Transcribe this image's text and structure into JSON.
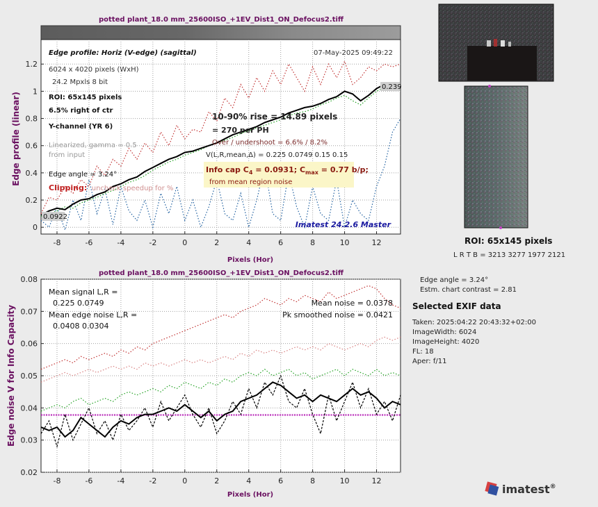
{
  "file_title": "potted plant_18.0 mm_25600ISO_+1EV_Dist1_ON_Defocus2.tiff",
  "colors": {
    "profile": "#000000",
    "red": "#c03030",
    "green": "#20a020",
    "blue": "#2060a0",
    "mean_noise_line": "#c040c0",
    "title": "#6a1060",
    "axis_label": "#6a1060",
    "watermark": "#1a1aa0",
    "info_box_bg": "#fbf6c8"
  },
  "chart_data": [
    {
      "type": "line",
      "name": "edge-profile",
      "xlabel": "Pixels (Hor)",
      "ylabel": "Edge profile (linear)",
      "xlim": [
        -9,
        13.5
      ],
      "ylim": [
        -0.05,
        1.38
      ],
      "xticks": [
        -8,
        -6,
        -4,
        -2,
        0,
        2,
        4,
        6,
        8,
        10,
        12
      ],
      "yticks": [
        0,
        0.2,
        0.4,
        0.6,
        0.8,
        1,
        1.2
      ],
      "grid": true,
      "series": [
        {
          "color": "black",
          "style": "solid",
          "x": [
            -9,
            -8.5,
            -8,
            -7.5,
            -7,
            -6.5,
            -6,
            -5.5,
            -5,
            -4.5,
            -4,
            -3.5,
            -3,
            -2.5,
            -2,
            -1.5,
            -1,
            -0.5,
            0,
            0.5,
            1,
            1.5,
            2,
            2.5,
            3,
            3.5,
            4,
            4.5,
            5,
            5.5,
            6,
            6.5,
            7,
            7.5,
            8,
            8.5,
            9,
            9.5,
            10,
            10.5,
            11,
            11.5,
            12,
            12.5,
            13,
            13.5
          ],
          "y": [
            0.09,
            0.12,
            0.14,
            0.13,
            0.17,
            0.2,
            0.21,
            0.24,
            0.26,
            0.3,
            0.32,
            0.35,
            0.37,
            0.41,
            0.44,
            0.47,
            0.5,
            0.52,
            0.55,
            0.56,
            0.58,
            0.6,
            0.62,
            0.65,
            0.68,
            0.7,
            0.72,
            0.74,
            0.77,
            0.79,
            0.81,
            0.84,
            0.86,
            0.88,
            0.89,
            0.91,
            0.94,
            0.96,
            1.0,
            0.98,
            0.93,
            0.97,
            1.02,
            1.05,
            1.04,
            1.03
          ]
        },
        {
          "color": "red",
          "style": "dotted",
          "x": [
            -9,
            -8.5,
            -8,
            -7.5,
            -7,
            -6.5,
            -6,
            -5.5,
            -5,
            -4.5,
            -4,
            -3.5,
            -3,
            -2.5,
            -2,
            -1.5,
            -1,
            -0.5,
            0,
            0.5,
            1,
            1.5,
            2,
            2.5,
            3,
            3.5,
            4,
            4.5,
            5,
            5.5,
            6,
            6.5,
            7,
            7.5,
            8,
            8.5,
            9,
            9.5,
            10,
            10.5,
            11,
            11.5,
            12,
            12.5,
            13,
            13.5
          ],
          "y": [
            0.1,
            0.22,
            0.2,
            0.3,
            0.25,
            0.35,
            0.3,
            0.45,
            0.38,
            0.5,
            0.45,
            0.58,
            0.5,
            0.62,
            0.55,
            0.7,
            0.6,
            0.75,
            0.65,
            0.72,
            0.7,
            0.85,
            0.78,
            0.95,
            0.88,
            1.05,
            0.95,
            1.1,
            1.0,
            1.15,
            1.05,
            1.2,
            1.1,
            1.0,
            1.18,
            1.05,
            1.2,
            1.1,
            1.22,
            1.05,
            1.1,
            1.18,
            1.15,
            1.2,
            1.18,
            1.2
          ]
        },
        {
          "color": "green",
          "style": "dotted",
          "x": [
            -9,
            -8.5,
            -8,
            -7.5,
            -7,
            -6.5,
            -6,
            -5.5,
            -5,
            -4.5,
            -4,
            -3.5,
            -3,
            -2.5,
            -2,
            -1.5,
            -1,
            -0.5,
            0,
            0.5,
            1,
            1.5,
            2,
            2.5,
            3,
            3.5,
            4,
            4.5,
            5,
            5.5,
            6,
            6.5,
            7,
            7.5,
            8,
            8.5,
            9,
            9.5,
            10,
            10.5,
            11,
            11.5,
            12,
            12.5,
            13,
            13.5
          ],
          "y": [
            0.08,
            0.1,
            0.12,
            0.15,
            0.14,
            0.18,
            0.2,
            0.22,
            0.25,
            0.27,
            0.3,
            0.33,
            0.35,
            0.38,
            0.42,
            0.45,
            0.48,
            0.5,
            0.53,
            0.55,
            0.57,
            0.6,
            0.62,
            0.64,
            0.66,
            0.69,
            0.71,
            0.73,
            0.75,
            0.77,
            0.79,
            0.82,
            0.84,
            0.85,
            0.87,
            0.9,
            0.92,
            0.95,
            0.97,
            0.93,
            0.9,
            0.95,
            1.0,
            1.03,
            1.05,
            1.0
          ]
        },
        {
          "color": "blue",
          "style": "dotted",
          "x": [
            -9,
            -8.5,
            -8,
            -7.5,
            -7,
            -6.5,
            -6,
            -5.5,
            -5,
            -4.5,
            -4,
            -3.5,
            -3,
            -2.5,
            -2,
            -1.5,
            -1,
            -0.5,
            0,
            0.5,
            1,
            1.5,
            2,
            2.5,
            3,
            3.5,
            4,
            4.5,
            5,
            5.5,
            6,
            6.5,
            7,
            7.5,
            8,
            8.5,
            9,
            9.5,
            10,
            10.5,
            11,
            11.5,
            12,
            12.5,
            13,
            13.5
          ],
          "y": [
            0.05,
            0.0,
            0.15,
            -0.02,
            0.2,
            0.05,
            0.35,
            0.1,
            0.28,
            0.02,
            0.3,
            0.12,
            0.05,
            0.2,
            0.0,
            0.25,
            0.1,
            0.3,
            0.05,
            0.2,
            0.0,
            0.15,
            0.35,
            0.1,
            0.05,
            0.25,
            0.0,
            0.2,
            0.45,
            0.1,
            0.05,
            0.4,
            0.15,
            0.0,
            0.3,
            0.1,
            0.05,
            0.35,
            0.0,
            0.2,
            0.1,
            0.05,
            0.3,
            0.45,
            0.7,
            0.8
          ]
        }
      ],
      "annotations": {
        "header": "Edge profile: Horiz (V-edge) (sagittal)",
        "timestamp": "07-May-2025 09:49:22",
        "size_px": "6024 x 4020 pixels (WxH)",
        "mpxls": "24.2 Mpxls   8 bit",
        "roi": "ROI:  65x145 pixels",
        "right_of_ctr": "6.5% right of ctr",
        "channel": "Y-channel  (YR 6)",
        "linearized": "Linearized, gamma = 0.5",
        "from_input": "from input",
        "edge_angle": "Edge angle = 3.24°",
        "clipping": "Clipping:",
        "clipping_note": "uncheck speedup for %",
        "rise": "10-90% rise = 14.89 pixels",
        "per_ph": "=  270 per PH",
        "overshoot": "Over / undershoot =  6.6% /  8.2%",
        "vl": "V(L,R,mean,Δ) = 0.225  0.0749  0.15  0.15",
        "info_cap_prefix": "Info cap C",
        "info_cap_sub": "4",
        "info_cap_mid": " = 0.0931;  C",
        "info_cap_sub2": "max",
        "info_cap_suffix": " = 0.77 b/p;",
        "info_cap_note": "from mean region noise",
        "watermark": "Imatest 24.2.6 Master",
        "left_value": "0.0922",
        "right_value": "0.239"
      }
    },
    {
      "type": "line",
      "name": "edge-noise",
      "xlabel": "Pixels (Hor)",
      "ylabel": "Edge noise V for Info Capacity",
      "xlim": [
        -9,
        13.5
      ],
      "ylim": [
        0.02,
        0.08
      ],
      "xticks": [
        -8,
        -6,
        -4,
        -2,
        0,
        2,
        4,
        6,
        8,
        10,
        12
      ],
      "yticks": [
        0.02,
        0.03,
        0.04,
        0.05,
        0.06,
        0.07,
        0.08
      ],
      "grid": true,
      "mean_noise": 0.0378,
      "series": [
        {
          "color": "black",
          "style": "solid",
          "x": [
            -9,
            -8.5,
            -8,
            -7.5,
            -7,
            -6.5,
            -6,
            -5.5,
            -5,
            -4.5,
            -4,
            -3.5,
            -3,
            -2.5,
            -2,
            -1.5,
            -1,
            -0.5,
            0,
            0.5,
            1,
            1.5,
            2,
            2.5,
            3,
            3.5,
            4,
            4.5,
            5,
            5.5,
            6,
            6.5,
            7,
            7.5,
            8,
            8.5,
            9,
            9.5,
            10,
            10.5,
            11,
            11.5,
            12,
            12.5,
            13,
            13.5
          ],
          "y": [
            0.034,
            0.033,
            0.034,
            0.031,
            0.033,
            0.037,
            0.035,
            0.033,
            0.031,
            0.034,
            0.036,
            0.035,
            0.037,
            0.038,
            0.038,
            0.039,
            0.04,
            0.039,
            0.041,
            0.039,
            0.037,
            0.039,
            0.036,
            0.038,
            0.039,
            0.042,
            0.043,
            0.044,
            0.046,
            0.048,
            0.047,
            0.045,
            0.043,
            0.044,
            0.042,
            0.044,
            0.043,
            0.042,
            0.044,
            0.046,
            0.044,
            0.045,
            0.043,
            0.04,
            0.042,
            0.041
          ]
        },
        {
          "color": "black",
          "style": "dashed",
          "x": [
            -9,
            -8.5,
            -8,
            -7.5,
            -7,
            -6.5,
            -6,
            -5.5,
            -5,
            -4.5,
            -4,
            -3.5,
            -3,
            -2.5,
            -2,
            -1.5,
            -1,
            -0.5,
            0,
            0.5,
            1,
            1.5,
            2,
            2.5,
            3,
            3.5,
            4,
            4.5,
            5,
            5.5,
            6,
            6.5,
            7,
            7.5,
            8,
            8.5,
            9,
            9.5,
            10,
            10.5,
            11,
            11.5,
            12,
            12.5,
            13,
            13.5
          ],
          "y": [
            0.032,
            0.036,
            0.028,
            0.038,
            0.03,
            0.035,
            0.04,
            0.032,
            0.036,
            0.03,
            0.038,
            0.033,
            0.036,
            0.04,
            0.034,
            0.042,
            0.036,
            0.04,
            0.044,
            0.038,
            0.034,
            0.04,
            0.032,
            0.036,
            0.042,
            0.038,
            0.046,
            0.04,
            0.048,
            0.044,
            0.05,
            0.042,
            0.04,
            0.046,
            0.038,
            0.032,
            0.044,
            0.036,
            0.042,
            0.048,
            0.04,
            0.046,
            0.038,
            0.042,
            0.036,
            0.044
          ]
        },
        {
          "color": "green",
          "style": "dotted",
          "x": [
            -9,
            -8.5,
            -8,
            -7.5,
            -7,
            -6.5,
            -6,
            -5.5,
            -5,
            -4.5,
            -4,
            -3.5,
            -3,
            -2.5,
            -2,
            -1.5,
            -1,
            -0.5,
            0,
            0.5,
            1,
            1.5,
            2,
            2.5,
            3,
            3.5,
            4,
            4.5,
            5,
            5.5,
            6,
            6.5,
            7,
            7.5,
            8,
            8.5,
            9,
            9.5,
            10,
            10.5,
            11,
            11.5,
            12,
            12.5,
            13,
            13.5
          ],
          "y": [
            0.039,
            0.04,
            0.041,
            0.04,
            0.042,
            0.043,
            0.041,
            0.042,
            0.043,
            0.042,
            0.044,
            0.045,
            0.044,
            0.045,
            0.046,
            0.045,
            0.047,
            0.046,
            0.048,
            0.047,
            0.046,
            0.048,
            0.047,
            0.049,
            0.048,
            0.05,
            0.051,
            0.05,
            0.052,
            0.05,
            0.051,
            0.052,
            0.05,
            0.051,
            0.049,
            0.05,
            0.051,
            0.052,
            0.05,
            0.052,
            0.051,
            0.05,
            0.052,
            0.05,
            0.051,
            0.05
          ]
        },
        {
          "color": "pink",
          "style": "dotted",
          "x": [
            -9,
            -8.5,
            -8,
            -7.5,
            -7,
            -6.5,
            -6,
            -5.5,
            -5,
            -4.5,
            -4,
            -3.5,
            -3,
            -2.5,
            -2,
            -1.5,
            -1,
            -0.5,
            0,
            0.5,
            1,
            1.5,
            2,
            2.5,
            3,
            3.5,
            4,
            4.5,
            5,
            5.5,
            6,
            6.5,
            7,
            7.5,
            8,
            8.5,
            9,
            9.5,
            10,
            10.5,
            11,
            11.5,
            12,
            12.5,
            13,
            13.5
          ],
          "y": [
            0.048,
            0.049,
            0.05,
            0.051,
            0.05,
            0.051,
            0.052,
            0.051,
            0.052,
            0.053,
            0.052,
            0.053,
            0.052,
            0.054,
            0.053,
            0.054,
            0.053,
            0.054,
            0.055,
            0.054,
            0.055,
            0.054,
            0.055,
            0.056,
            0.055,
            0.057,
            0.056,
            0.058,
            0.057,
            0.058,
            0.057,
            0.058,
            0.059,
            0.058,
            0.059,
            0.058,
            0.06,
            0.059,
            0.058,
            0.059,
            0.06,
            0.059,
            0.061,
            0.062,
            0.061,
            0.062
          ]
        },
        {
          "color": "red",
          "style": "dotted",
          "x": [
            -9,
            -8.5,
            -8,
            -7.5,
            -7,
            -6.5,
            -6,
            -5.5,
            -5,
            -4.5,
            -4,
            -3.5,
            -3,
            -2.5,
            -2,
            -1.5,
            -1,
            -0.5,
            0,
            0.5,
            1,
            1.5,
            2,
            2.5,
            3,
            3.5,
            4,
            4.5,
            5,
            5.5,
            6,
            6.5,
            7,
            7.5,
            8,
            8.5,
            9,
            9.5,
            10,
            10.5,
            11,
            11.5,
            12,
            12.5,
            13,
            13.5
          ],
          "y": [
            0.052,
            0.053,
            0.054,
            0.055,
            0.054,
            0.056,
            0.055,
            0.056,
            0.057,
            0.056,
            0.058,
            0.057,
            0.059,
            0.058,
            0.06,
            0.061,
            0.062,
            0.063,
            0.064,
            0.065,
            0.066,
            0.067,
            0.068,
            0.069,
            0.068,
            0.07,
            0.071,
            0.072,
            0.074,
            0.073,
            0.072,
            0.074,
            0.073,
            0.075,
            0.074,
            0.073,
            0.076,
            0.074,
            0.075,
            0.076,
            0.077,
            0.078,
            0.077,
            0.074,
            0.072,
            0.071
          ]
        }
      ],
      "annotations": {
        "mean_signal": "Mean signal L,R =",
        "mean_signal_values": "0.225  0.0749",
        "mean_edge_noise": "Mean edge noise L,R =",
        "mean_edge_noise_values": "0.0408  0.0304",
        "mean_noise": "Mean noise = 0.0378",
        "pk_smoothed": "Pk smoothed noise = 0.0421"
      }
    }
  ],
  "sidebar": {
    "roi_title": "ROI:  65x145 pixels",
    "roi_coords": "L R  T B = 3213 3277  1977 2121",
    "edge_angle": "Edge angle = 3.24°",
    "contrast": "Estm. chart contrast = 2.81",
    "exif_title": "Selected EXIF data",
    "exif": [
      "Taken: 2025:04:22 20:43:32+02:00",
      "ImageWidth:  6024",
      "ImageHeight:  4020",
      "FL:   18",
      "Aper:  f/11"
    ]
  },
  "logo": {
    "text": "imatest",
    "reg": "®"
  }
}
